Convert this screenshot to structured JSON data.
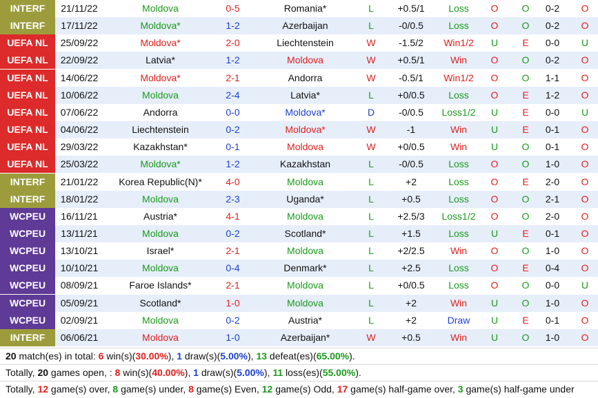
{
  "table": {
    "rows": [
      {
        "comp": "INTERF",
        "date": "21/11/22",
        "home": "Moldova",
        "score": "0-5",
        "away": "Romania*",
        "result": "L",
        "handicap": "+0.5/1",
        "handicap_result": "Loss",
        "ou": "O",
        "oe": "O",
        "half": "0-2",
        "half_ou": "O",
        "score_color": "red"
      },
      {
        "comp": "INTERF",
        "date": "17/11/22",
        "home": "Moldova*",
        "score": "1-2",
        "away": "Azerbaijan",
        "result": "L",
        "handicap": "-0/0.5",
        "handicap_result": "Loss",
        "ou": "O",
        "oe": "O",
        "half": "0-2",
        "half_ou": "O",
        "score_color": "blue"
      },
      {
        "comp": "UEFA NL",
        "date": "25/09/22",
        "home": "Moldova*",
        "score": "2-0",
        "away": "Liechtenstein",
        "result": "W",
        "handicap": "-1.5/2",
        "handicap_result": "Win1/2",
        "ou": "U",
        "oe": "E",
        "half": "0-0",
        "half_ou": "U",
        "score_color": "red"
      },
      {
        "comp": "UEFA NL",
        "date": "22/09/22",
        "home": "Latvia*",
        "score": "1-2",
        "away": "Moldova",
        "result": "W",
        "handicap": "+0.5/1",
        "handicap_result": "Win",
        "ou": "O",
        "oe": "O",
        "half": "0-2",
        "half_ou": "O",
        "score_color": "blue"
      },
      {
        "comp": "UEFA NL",
        "date": "14/06/22",
        "home": "Moldova*",
        "score": "2-1",
        "away": "Andorra",
        "result": "W",
        "handicap": "-0.5/1",
        "handicap_result": "Win1/2",
        "ou": "O",
        "oe": "O",
        "half": "1-1",
        "half_ou": "O",
        "score_color": "red"
      },
      {
        "comp": "UEFA NL",
        "date": "10/06/22",
        "home": "Moldova",
        "score": "2-4",
        "away": "Latvia*",
        "result": "L",
        "handicap": "+0/0.5",
        "handicap_result": "Loss",
        "ou": "O",
        "oe": "E",
        "half": "1-2",
        "half_ou": "O",
        "score_color": "blue"
      },
      {
        "comp": "UEFA NL",
        "date": "07/06/22",
        "home": "Andorra",
        "score": "0-0",
        "away": "Moldova*",
        "result": "D",
        "handicap": "-0/0.5",
        "handicap_result": "Loss1/2",
        "ou": "U",
        "oe": "E",
        "half": "0-0",
        "half_ou": "U",
        "score_color": "blue"
      },
      {
        "comp": "UEFA NL",
        "date": "04/06/22",
        "home": "Liechtenstein",
        "score": "0-2",
        "away": "Moldova*",
        "result": "W",
        "handicap": "-1",
        "handicap_result": "Win",
        "ou": "U",
        "oe": "E",
        "half": "0-1",
        "half_ou": "O",
        "score_color": "blue"
      },
      {
        "comp": "UEFA NL",
        "date": "29/03/22",
        "home": "Kazakhstan*",
        "score": "0-1",
        "away": "Moldova",
        "result": "W",
        "handicap": "+0/0.5",
        "handicap_result": "Win",
        "ou": "U",
        "oe": "O",
        "half": "0-1",
        "half_ou": "O",
        "score_color": "blue"
      },
      {
        "comp": "UEFA NL",
        "date": "25/03/22",
        "home": "Moldova*",
        "score": "1-2",
        "away": "Kazakhstan",
        "result": "L",
        "handicap": "-0/0.5",
        "handicap_result": "Loss",
        "ou": "O",
        "oe": "O",
        "half": "1-0",
        "half_ou": "O",
        "score_color": "blue"
      },
      {
        "comp": "INTERF",
        "date": "21/01/22",
        "home": "Korea Republic(N)*",
        "score": "4-0",
        "away": "Moldova",
        "result": "L",
        "handicap": "+2",
        "handicap_result": "Loss",
        "ou": "O",
        "oe": "E",
        "half": "2-0",
        "half_ou": "O",
        "score_color": "red"
      },
      {
        "comp": "INTERF",
        "date": "18/01/22",
        "home": "Moldova",
        "score": "2-3",
        "away": "Uganda*",
        "result": "L",
        "handicap": "+0.5",
        "handicap_result": "Loss",
        "ou": "O",
        "oe": "O",
        "half": "2-1",
        "half_ou": "O",
        "score_color": "blue"
      },
      {
        "comp": "WCPEU",
        "date": "16/11/21",
        "home": "Austria*",
        "score": "4-1",
        "away": "Moldova",
        "result": "L",
        "handicap": "+2.5/3",
        "handicap_result": "Loss1/2",
        "ou": "O",
        "oe": "O",
        "half": "2-0",
        "half_ou": "O",
        "score_color": "red"
      },
      {
        "comp": "WCPEU",
        "date": "13/11/21",
        "home": "Moldova",
        "score": "0-2",
        "away": "Scotland*",
        "result": "L",
        "handicap": "+1.5",
        "handicap_result": "Loss",
        "ou": "U",
        "oe": "E",
        "half": "0-1",
        "half_ou": "O",
        "score_color": "blue"
      },
      {
        "comp": "WCPEU",
        "date": "13/10/21",
        "home": "Israel*",
        "score": "2-1",
        "away": "Moldova",
        "result": "L",
        "handicap": "+2/2.5",
        "handicap_result": "Win",
        "ou": "O",
        "oe": "O",
        "half": "1-0",
        "half_ou": "O",
        "score_color": "red"
      },
      {
        "comp": "WCPEU",
        "date": "10/10/21",
        "home": "Moldova",
        "score": "0-4",
        "away": "Denmark*",
        "result": "L",
        "handicap": "+2.5",
        "handicap_result": "Loss",
        "ou": "O",
        "oe": "E",
        "half": "0-4",
        "half_ou": "O",
        "score_color": "blue"
      },
      {
        "comp": "WCPEU",
        "date": "08/09/21",
        "home": "Faroe Islands*",
        "score": "2-1",
        "away": "Moldova",
        "result": "L",
        "handicap": "+0/0.5",
        "handicap_result": "Loss",
        "ou": "O",
        "oe": "O",
        "half": "0-0",
        "half_ou": "U",
        "score_color": "red"
      },
      {
        "comp": "WCPEU",
        "date": "05/09/21",
        "home": "Scotland*",
        "score": "1-0",
        "away": "Moldova",
        "result": "L",
        "handicap": "+2",
        "handicap_result": "Win",
        "ou": "U",
        "oe": "O",
        "half": "1-0",
        "half_ou": "O",
        "score_color": "red"
      },
      {
        "comp": "WCPEU",
        "date": "02/09/21",
        "home": "Moldova",
        "score": "0-2",
        "away": "Austria*",
        "result": "L",
        "handicap": "+2",
        "handicap_result": "Draw",
        "ou": "U",
        "oe": "E",
        "half": "0-1",
        "half_ou": "O",
        "score_color": "blue"
      },
      {
        "comp": "INTERF",
        "date": "06/06/21",
        "home": "Moldova",
        "score": "1-0",
        "away": "Azerbaijan*",
        "result": "W",
        "handicap": "+0.5",
        "handicap_result": "Win",
        "ou": "U",
        "oe": "O",
        "half": "1-0",
        "half_ou": "O",
        "score_color": "blue"
      }
    ]
  },
  "summary": [
    [
      {
        "text": "20",
        "color": "black"
      },
      {
        "text": " match(es) in total: "
      },
      {
        "text": "6",
        "color": "red"
      },
      {
        "text": " win(s)("
      },
      {
        "text": "30.00%",
        "color": "red"
      },
      {
        "text": "), "
      },
      {
        "text": "1",
        "color": "blue"
      },
      {
        "text": " draw(s)("
      },
      {
        "text": "5.00%",
        "color": "blue"
      },
      {
        "text": "), "
      },
      {
        "text": "13",
        "color": "green"
      },
      {
        "text": " defeat(es)("
      },
      {
        "text": "65.00%",
        "color": "green"
      },
      {
        "text": ")."
      }
    ],
    [
      {
        "text": "Totally, "
      },
      {
        "text": "20",
        "color": "black"
      },
      {
        "text": " games open, : "
      },
      {
        "text": "8",
        "color": "red"
      },
      {
        "text": " win(s)("
      },
      {
        "text": "40.00%",
        "color": "red"
      },
      {
        "text": "), "
      },
      {
        "text": "1",
        "color": "blue"
      },
      {
        "text": " draw(s)("
      },
      {
        "text": "5.00%",
        "color": "blue"
      },
      {
        "text": "), "
      },
      {
        "text": "11",
        "color": "green"
      },
      {
        "text": " loss(es)("
      },
      {
        "text": "55.00%",
        "color": "green"
      },
      {
        "text": ")."
      }
    ],
    [
      {
        "text": "Totally, "
      },
      {
        "text": "12",
        "color": "red"
      },
      {
        "text": " game(s) over, "
      },
      {
        "text": "8",
        "color": "green"
      },
      {
        "text": " game(s) under, "
      },
      {
        "text": "8",
        "color": "red"
      },
      {
        "text": " game(s) Even, "
      },
      {
        "text": "12",
        "color": "green"
      },
      {
        "text": " game(s) Odd, "
      },
      {
        "text": "17",
        "color": "red"
      },
      {
        "text": " game(s) half-game over, "
      },
      {
        "text": "3",
        "color": "green"
      },
      {
        "text": " game(s) half-game under"
      }
    ]
  ]
}
